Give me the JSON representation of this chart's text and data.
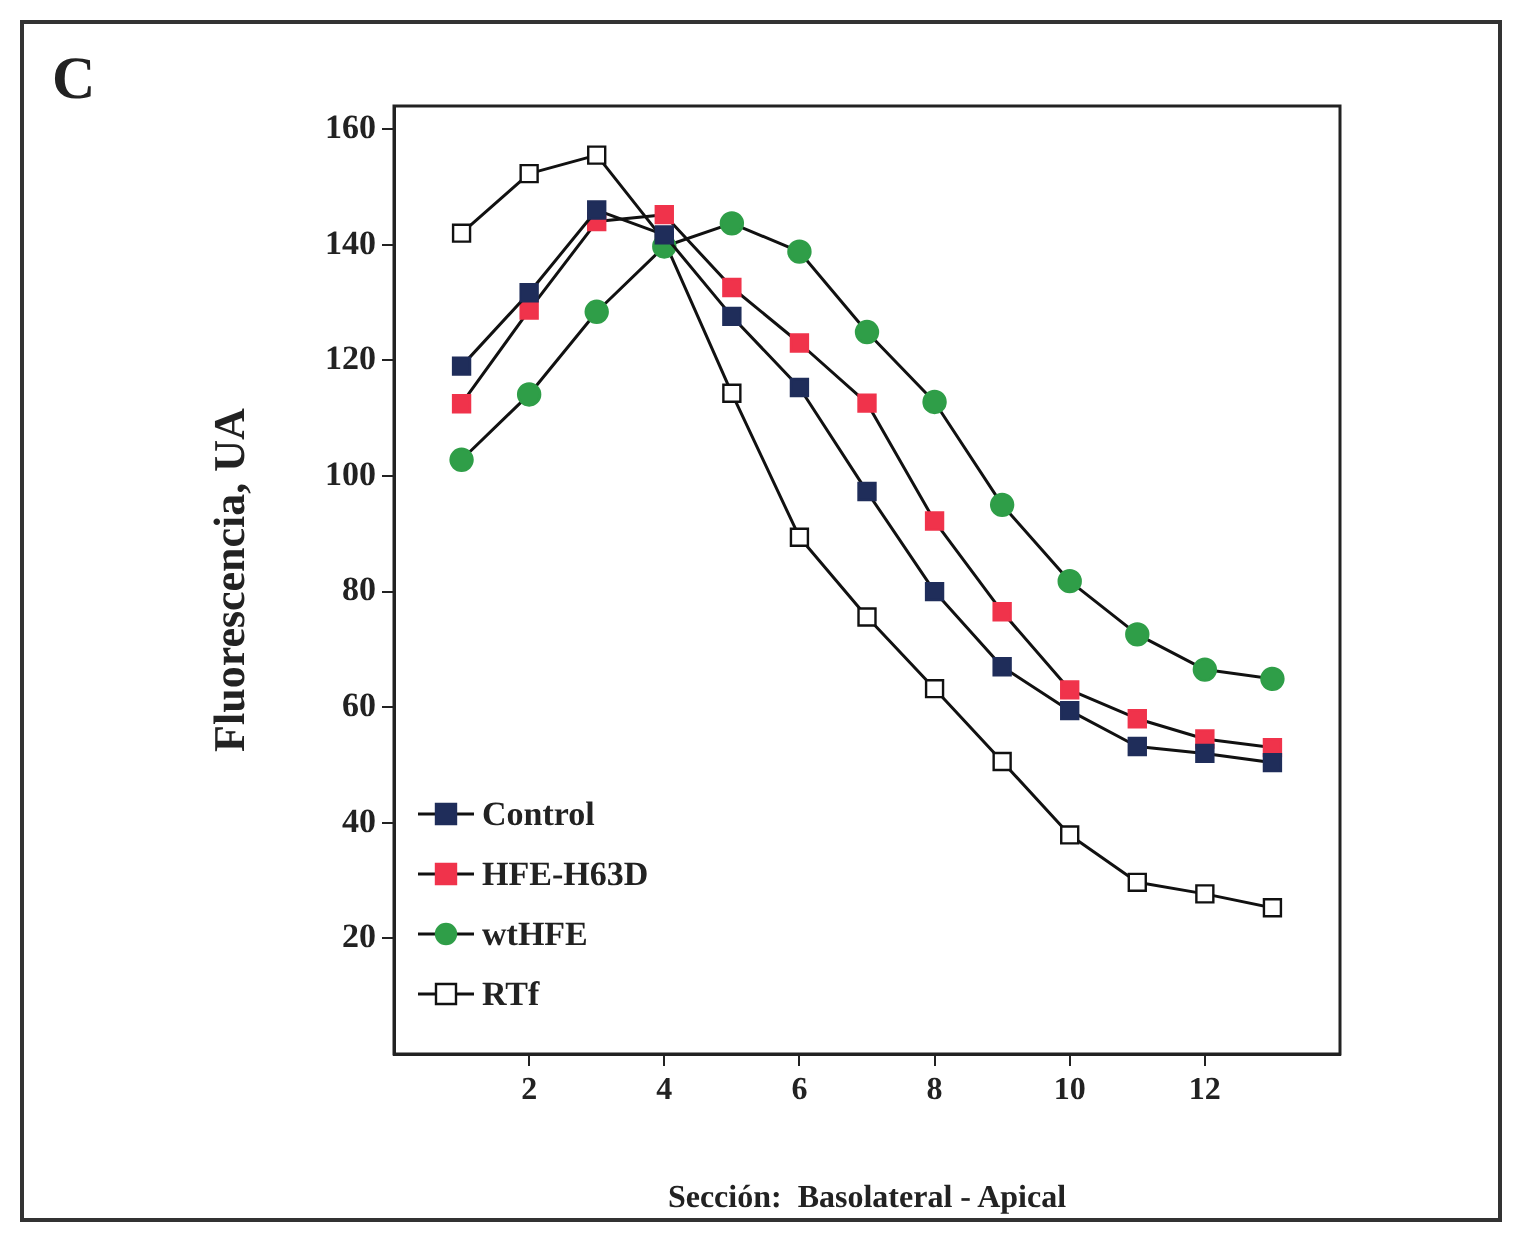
{
  "chart_data": {
    "type": "line",
    "title": "C",
    "xlabel": "Sección:  Basolateral - Apical",
    "ylabel": "Fluorescencia, UA",
    "x": [
      1,
      2,
      3,
      4,
      5,
      6,
      7,
      8,
      9,
      10,
      11,
      12,
      13
    ],
    "series": [
      {
        "name": "Control",
        "color": "#1f2d5a",
        "marker": "square",
        "values": [
          119,
          131.7,
          146,
          141.7,
          127.6,
          115.3,
          97.3,
          80,
          67,
          59.4,
          53.2,
          52,
          50.4
        ]
      },
      {
        "name": "HFE-H63D",
        "color": "#f0334b",
        "marker": "square",
        "values": [
          112.5,
          128.7,
          144,
          145.2,
          132.6,
          123,
          112.6,
          92.2,
          76.5,
          63,
          58,
          54.5,
          53
        ]
      },
      {
        "name": "wtHFE",
        "color": "#2f9e48",
        "marker": "circle",
        "values": [
          102.8,
          114.1,
          128.4,
          139.7,
          143.7,
          138.8,
          124.9,
          112.8,
          95,
          81.8,
          72.6,
          66.5,
          64.9
        ]
      },
      {
        "name": "RTf",
        "color": "#ffffff",
        "marker": "square",
        "values": [
          142,
          152.3,
          155.5,
          140.7,
          114.3,
          89.4,
          75.6,
          63.2,
          50.6,
          37.9,
          29.7,
          27.7,
          25.3
        ]
      }
    ],
    "xlim": [
      0,
      14
    ],
    "xticks": [
      2,
      4,
      6,
      8,
      10,
      12
    ],
    "ylim": [
      0,
      164
    ],
    "yticks": [
      20,
      40,
      60,
      80,
      100,
      120,
      140,
      160
    ],
    "grid": false,
    "legend": "bottom left",
    "line_style": "solid"
  }
}
